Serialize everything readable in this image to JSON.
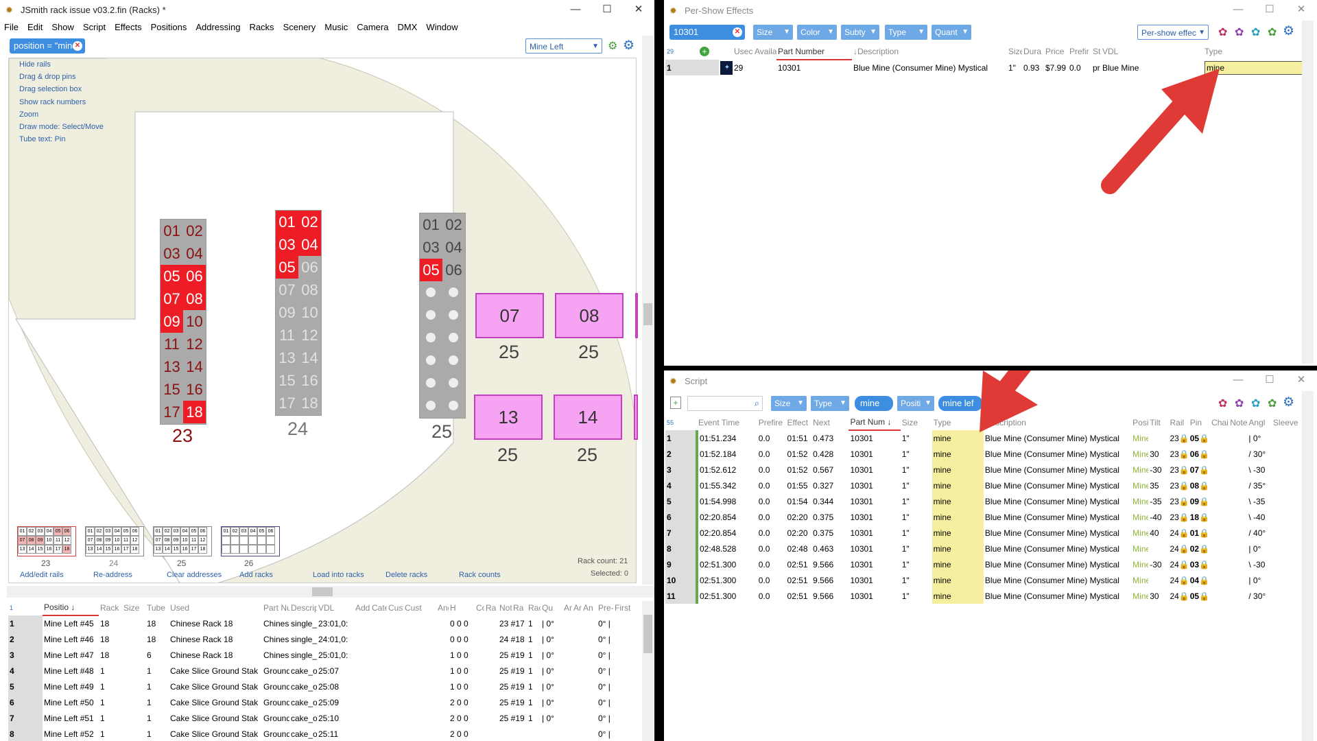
{
  "main": {
    "title": "JSmith rack issue v03.2.fin (Racks) *",
    "menu": [
      "File",
      "Edit",
      "Show",
      "Script",
      "Effects",
      "Positions",
      "Addressing",
      "Racks",
      "Scenery",
      "Music",
      "Camera",
      "DMX",
      "Window"
    ],
    "filter_pill": "position = \"mine",
    "position_select": "Mine Left",
    "links": [
      "Hide rails",
      "Drag & drop pins",
      "Drag selection box",
      "Show rack numbers",
      "Zoom",
      "Draw mode: Select/Move",
      "Tube text: Pin"
    ],
    "bottom_links": [
      "Add/edit rails",
      "Re-address",
      "Clear addresses",
      "Add racks",
      "Load into racks",
      "Delete racks",
      "Rack counts"
    ],
    "rack_count": "Rack count: 21",
    "selected": "Selected: 0",
    "rack_labels": [
      "23",
      "24",
      "25"
    ],
    "pink_tubes": [
      "07",
      "08",
      "13",
      "14"
    ],
    "pink_labels": [
      "25",
      "25",
      "25",
      "25"
    ],
    "mini_labels": [
      "23",
      "24",
      "25",
      "26"
    ],
    "table": {
      "count": "1",
      "headers": [
        "Positio",
        "Rack",
        "Size",
        "Tube",
        "Used",
        "Part Number",
        "Descrip",
        "VDL",
        "Address",
        "Cate",
        "Cust",
        "Cust",
        "Angle",
        "H",
        "Coordin",
        "Ra",
        "Note",
        "Ra",
        "Rac",
        "Qu",
        "Angl",
        "An",
        "An",
        "Pre-",
        "First"
      ],
      "rows": [
        [
          "1",
          "Mine Left #45",
          "18",
          "18",
          "Chinese Rack 18",
          "Chinese",
          "single_:",
          "23:01,0:",
          "0 0 0",
          "23 #17",
          "1",
          "| 0°",
          "0° |"
        ],
        [
          "2",
          "Mine Left #46",
          "18",
          "18",
          "Chinese Rack 18",
          "Chinese",
          "single_:",
          "24:01,0:",
          "0 0 0",
          "24 #18",
          "1",
          "| 0°",
          "0° |"
        ],
        [
          "3",
          "Mine Left #47",
          "18",
          "6",
          "Chinese Rack 18",
          "Chinese",
          "single_:",
          "25:01,0:",
          "1 0 0",
          "25 #19",
          "1",
          "| 0°",
          "0° |"
        ],
        [
          "4",
          "Mine Left #48",
          "1",
          "1",
          "Cake Slice Ground Stak",
          "Ground",
          "cake_or",
          "25:07",
          "1 0 0",
          "25 #19",
          "1",
          "| 0°",
          "0° |"
        ],
        [
          "5",
          "Mine Left #49",
          "1",
          "1",
          "Cake Slice Ground Stak",
          "Ground",
          "cake_or",
          "25:08",
          "1 0 0",
          "25 #19",
          "1",
          "| 0°",
          "0° |"
        ],
        [
          "6",
          "Mine Left #50",
          "1",
          "1",
          "Cake Slice Ground Stak",
          "Ground",
          "cake_or",
          "25:09",
          "2 0 0",
          "25 #19",
          "1",
          "| 0°",
          "0° |"
        ],
        [
          "7",
          "Mine Left #51",
          "1",
          "1",
          "Cake Slice Ground Stak",
          "Ground",
          "cake_or",
          "25:10",
          "2 0 0",
          "25 #19",
          "1",
          "| 0°",
          "0° |"
        ],
        [
          "8",
          "Mine Left #52",
          "1",
          "1",
          "Cake Slice Ground Stak",
          "Ground",
          "cake_or",
          "25:11",
          "2 0 0",
          "",
          "",
          "",
          "0° |"
        ]
      ]
    }
  },
  "effects": {
    "title": "Per-Show Effects",
    "search_value": "10301",
    "filters": [
      "Size",
      "Color",
      "Subty",
      "Type",
      "Quant"
    ],
    "mode_select": "Per-show effec",
    "count": "29",
    "headers": [
      "Usec",
      "Availa",
      "Part Number",
      "Description",
      "Size",
      "Dura",
      "Price",
      "Prefir",
      "St",
      "VDL",
      "Type"
    ],
    "row": {
      "n": "1",
      "used": "29",
      "part": "10301",
      "desc": "Blue Mine (Consumer Mine) Mystical",
      "size": "1\"",
      "dur": "0.93",
      "price": "$7.99",
      "prefire": "0.0",
      "st": "pr",
      "vdl": "Blue Mine",
      "type": "mine"
    }
  },
  "script": {
    "title": "Script",
    "filters": [
      "Size",
      "Type"
    ],
    "pill_mine": "mine",
    "filter_pos": "Positi",
    "pill_mineleft": "mine lef",
    "count": "55",
    "headers": [
      "Event Time",
      "Prefire",
      "Effect",
      "Next",
      "Part Num",
      "Size",
      "Type",
      "Description",
      "Posi",
      "Tilt",
      "Rail",
      "Pin",
      "Chai",
      "Note",
      "Angl",
      "Sleeve"
    ],
    "rows": [
      [
        "1",
        "01:51.234",
        "0.0",
        "01:51",
        "0.473",
        "10301",
        "1\"",
        "mine",
        "Blue Mine (Consumer Mine) Mystical",
        "Mine",
        "",
        "23",
        "05",
        "| 0°"
      ],
      [
        "2",
        "01:52.184",
        "0.0",
        "01:52",
        "0.428",
        "10301",
        "1\"",
        "mine",
        "Blue Mine (Consumer Mine) Mystical",
        "Mine",
        "30",
        "23",
        "06",
        "/ 30°"
      ],
      [
        "3",
        "01:52.612",
        "0.0",
        "01:52",
        "0.567",
        "10301",
        "1\"",
        "mine",
        "Blue Mine (Consumer Mine) Mystical",
        "Mine",
        "-30",
        "23",
        "07",
        "\\ -30"
      ],
      [
        "4",
        "01:55.342",
        "0.0",
        "01:55",
        "0.327",
        "10301",
        "1\"",
        "mine",
        "Blue Mine (Consumer Mine) Mystical",
        "Mine",
        "35",
        "23",
        "08",
        "/ 35°"
      ],
      [
        "5",
        "01:54.998",
        "0.0",
        "01:54",
        "0.344",
        "10301",
        "1\"",
        "mine",
        "Blue Mine (Consumer Mine) Mystical",
        "Mine",
        "-35",
        "23",
        "09",
        "\\ -35"
      ],
      [
        "6",
        "02:20.854",
        "0.0",
        "02:20",
        "0.375",
        "10301",
        "1\"",
        "mine",
        "Blue Mine (Consumer Mine) Mystical",
        "Mine",
        "-40",
        "23",
        "18",
        "\\ -40"
      ],
      [
        "7",
        "02:20.854",
        "0.0",
        "02:20",
        "0.375",
        "10301",
        "1\"",
        "mine",
        "Blue Mine (Consumer Mine) Mystical",
        "Mine",
        "40",
        "24",
        "01",
        "/ 40°"
      ],
      [
        "8",
        "02:48.528",
        "0.0",
        "02:48",
        "0.463",
        "10301",
        "1\"",
        "mine",
        "Blue Mine (Consumer Mine) Mystical",
        "Mine",
        "",
        "24",
        "02",
        "| 0°"
      ],
      [
        "9",
        "02:51.300",
        "0.0",
        "02:51",
        "9.566",
        "10301",
        "1\"",
        "mine",
        "Blue Mine (Consumer Mine) Mystical",
        "Mine",
        "-30",
        "24",
        "03",
        "\\ -30"
      ],
      [
        "10",
        "02:51.300",
        "0.0",
        "02:51",
        "9.566",
        "10301",
        "1\"",
        "mine",
        "Blue Mine (Consumer Mine) Mystical",
        "Mine",
        "",
        "24",
        "04",
        "| 0°"
      ],
      [
        "11",
        "02:51.300",
        "0.0",
        "02:51",
        "9.566",
        "10301",
        "1\"",
        "mine",
        "Blue Mine (Consumer Mine) Mystical",
        "Mine",
        "30",
        "24",
        "05",
        "/ 30°"
      ]
    ]
  }
}
